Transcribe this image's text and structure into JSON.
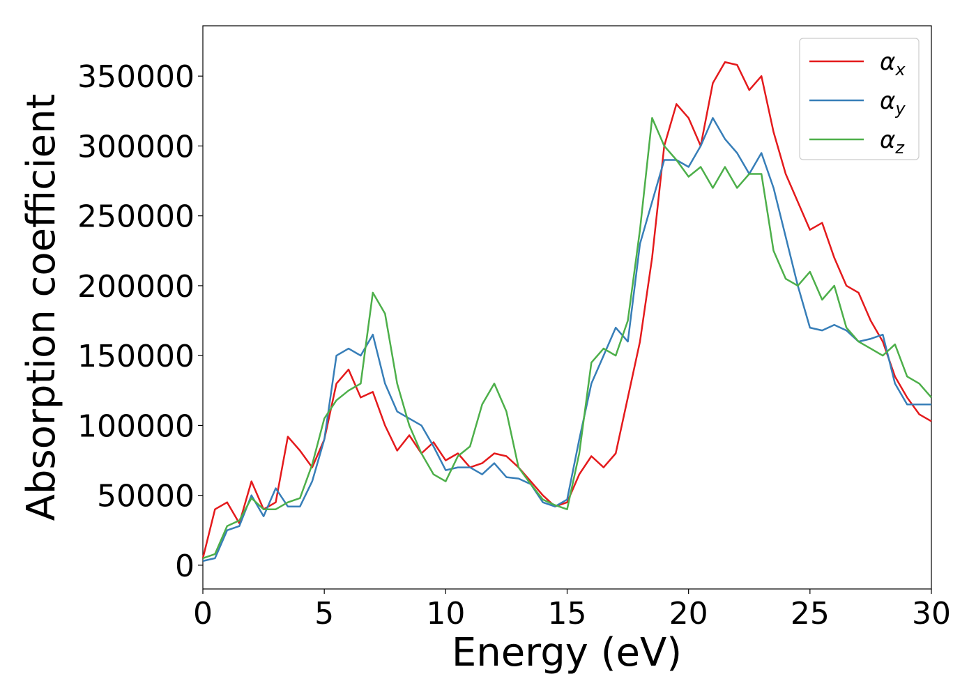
{
  "chart_data": {
    "type": "line",
    "xlabel": "Energy (eV)",
    "ylabel": "Absorption coefficient",
    "x": [
      0,
      0.5,
      1,
      1.5,
      2,
      2.5,
      3,
      3.5,
      4,
      4.5,
      5,
      5.5,
      6,
      6.5,
      7,
      7.5,
      8,
      8.5,
      9,
      9.5,
      10,
      10.5,
      11,
      11.5,
      12,
      12.5,
      13,
      13.5,
      14,
      14.5,
      15,
      15.5,
      16,
      16.5,
      17,
      17.5,
      18,
      18.5,
      19,
      19.5,
      20,
      20.5,
      21,
      21.5,
      22,
      22.5,
      23,
      23.5,
      24,
      24.5,
      25,
      25.5,
      26,
      26.5,
      27,
      27.5,
      28,
      28.5,
      29,
      29.5,
      30
    ],
    "series": [
      {
        "name": "αx",
        "color": "#e41a1c",
        "values": [
          5000,
          40000,
          45000,
          30000,
          60000,
          40000,
          45000,
          92000,
          82000,
          70000,
          90000,
          130000,
          140000,
          120000,
          124000,
          100000,
          82000,
          93000,
          80000,
          88000,
          75000,
          80000,
          70000,
          73000,
          80000,
          78000,
          70000,
          60000,
          50000,
          42000,
          45000,
          65000,
          78000,
          70000,
          80000,
          120000,
          160000,
          220000,
          300000,
          330000,
          320000,
          300000,
          345000,
          360000,
          358000,
          340000,
          350000,
          310000,
          280000,
          260000,
          240000,
          245000,
          220000,
          200000,
          195000,
          175000,
          160000,
          135000,
          120000,
          108000,
          103000
        ]
      },
      {
        "name": "αy",
        "color": "#377eb8",
        "values": [
          3000,
          5000,
          25000,
          28000,
          50000,
          35000,
          55000,
          42000,
          42000,
          60000,
          90000,
          150000,
          155000,
          150000,
          165000,
          130000,
          110000,
          105000,
          100000,
          85000,
          68000,
          70000,
          70000,
          65000,
          73000,
          63000,
          62000,
          58000,
          45000,
          42000,
          47000,
          90000,
          130000,
          150000,
          170000,
          160000,
          230000,
          260000,
          290000,
          290000,
          285000,
          300000,
          320000,
          305000,
          295000,
          280000,
          295000,
          270000,
          235000,
          200000,
          170000,
          168000,
          172000,
          168000,
          160000,
          162000,
          165000,
          130000,
          115000,
          115000,
          115000
        ]
      },
      {
        "name": "αz",
        "color": "#4daf4a",
        "values": [
          5000,
          8000,
          28000,
          32000,
          48000,
          40000,
          40000,
          45000,
          48000,
          72000,
          105000,
          118000,
          125000,
          130000,
          195000,
          180000,
          130000,
          100000,
          80000,
          65000,
          60000,
          78000,
          85000,
          115000,
          130000,
          110000,
          70000,
          58000,
          47000,
          43000,
          40000,
          80000,
          145000,
          155000,
          150000,
          175000,
          240000,
          320000,
          300000,
          290000,
          278000,
          285000,
          270000,
          285000,
          270000,
          280000,
          280000,
          225000,
          205000,
          200000,
          210000,
          190000,
          200000,
          170000,
          160000,
          155000,
          150000,
          158000,
          135000,
          130000,
          120000
        ]
      }
    ],
    "xlim": [
      0,
      30
    ],
    "xticks": [
      0,
      5,
      10,
      15,
      20,
      25,
      30
    ],
    "ylim": [
      -17000,
      386000
    ],
    "yticks": [
      0,
      50000,
      100000,
      150000,
      200000,
      250000,
      300000,
      350000
    ],
    "grid": false,
    "legend": "upper right"
  }
}
